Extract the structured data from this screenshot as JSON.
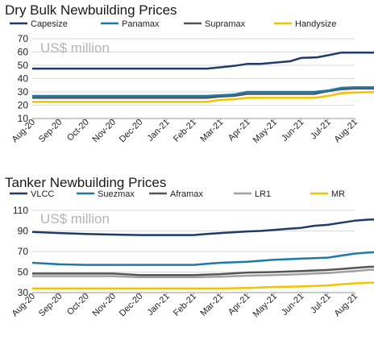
{
  "chart_data": [
    {
      "type": "line",
      "title": "Dry Bulk Newbuilding Prices",
      "unit_label": "US$ million",
      "ylim": [
        10,
        70
      ],
      "yticks": [
        10,
        20,
        30,
        40,
        50,
        60,
        70
      ],
      "grid": true,
      "legend_position": "top",
      "x_tick_labels": [
        "Aug-20",
        "Sep-20",
        "Oct-20",
        "Nov-20",
        "Dec-20",
        "Jan-21",
        "Feb-21",
        "Mar-21",
        "Apr-21",
        "May-21",
        "Jun-21",
        "Jul-21",
        "Aug-21"
      ],
      "series": [
        {
          "name": "Capesize",
          "color": "#1f3a6e",
          "points": [
            [
              0,
              47.5
            ],
            [
              6.5,
              47.5
            ],
            [
              7,
              48.5
            ],
            [
              7.5,
              49.5
            ],
            [
              8,
              51
            ],
            [
              8.5,
              51
            ],
            [
              9,
              52
            ],
            [
              9.6,
              53
            ],
            [
              10,
              55.5
            ],
            [
              10.6,
              56
            ],
            [
              11,
              57.5
            ],
            [
              11.5,
              59.5
            ],
            [
              12,
              59.5
            ],
            [
              13,
              59.5
            ]
          ]
        },
        {
          "name": "Panamax",
          "color": "#1a7aaa",
          "points": [
            [
              0,
              27
            ],
            [
              6.5,
              27
            ],
            [
              7,
              27.5
            ],
            [
              7.5,
              28
            ],
            [
              8,
              30
            ],
            [
              9,
              30
            ],
            [
              10,
              30
            ],
            [
              10.5,
              30
            ],
            [
              11,
              31
            ],
            [
              11.5,
              33
            ],
            [
              12,
              33.5
            ],
            [
              13,
              33.5
            ]
          ]
        },
        {
          "name": "Supramax",
          "color": "#555555",
          "points": [
            [
              0,
              25.5
            ],
            [
              6.5,
              25.5
            ],
            [
              7,
              26.5
            ],
            [
              7.5,
              27
            ],
            [
              8,
              28.5
            ],
            [
              10.5,
              28.5
            ],
            [
              11,
              30.5
            ],
            [
              11.5,
              32
            ],
            [
              12,
              32.5
            ],
            [
              13,
              32.5
            ]
          ]
        },
        {
          "name": "Handysize",
          "color": "#f2c400",
          "points": [
            [
              0,
              22.5
            ],
            [
              6.5,
              22.5
            ],
            [
              7,
              24
            ],
            [
              7.5,
              24.5
            ],
            [
              8,
              25.5
            ],
            [
              10.5,
              25.5
            ],
            [
              11,
              27
            ],
            [
              11.5,
              29
            ],
            [
              12,
              29.5
            ],
            [
              13,
              30
            ]
          ]
        }
      ]
    },
    {
      "type": "line",
      "title": "Tanker Newbuilding Prices",
      "unit_label": "US$ million",
      "ylim": [
        30,
        110
      ],
      "yticks": [
        30,
        50,
        70,
        90,
        110
      ],
      "grid": true,
      "legend_position": "top",
      "x_tick_labels": [
        "Aug-20",
        "Sep-20",
        "Oct-20",
        "Nov-20",
        "Dec-20",
        "Jan-21",
        "Feb-21",
        "Mar-21",
        "Apr-21",
        "May-21",
        "Jun-21",
        "Jul-21",
        "Aug-21"
      ],
      "series": [
        {
          "name": "VLCC",
          "color": "#1f3a6e",
          "points": [
            [
              0,
              89
            ],
            [
              1,
              88
            ],
            [
              2,
              87
            ],
            [
              3,
              86.5
            ],
            [
              4,
              86
            ],
            [
              5,
              86
            ],
            [
              6,
              86
            ],
            [
              6.5,
              87
            ],
            [
              7,
              88
            ],
            [
              8,
              89.5
            ],
            [
              8.5,
              90
            ],
            [
              9,
              91
            ],
            [
              9.5,
              92
            ],
            [
              10,
              93
            ],
            [
              10.5,
              95
            ],
            [
              11,
              96
            ],
            [
              11.5,
              98
            ],
            [
              12,
              100
            ],
            [
              12.5,
              101
            ],
            [
              13,
              101.5
            ]
          ]
        },
        {
          "name": "Suezmax",
          "color": "#1a7aaa",
          "points": [
            [
              0,
              59
            ],
            [
              1,
              57.5
            ],
            [
              2,
              57
            ],
            [
              3,
              57
            ],
            [
              4,
              57
            ],
            [
              5,
              57
            ],
            [
              6,
              57
            ],
            [
              6.5,
              58
            ],
            [
              7,
              59
            ],
            [
              8,
              60
            ],
            [
              8.5,
              61
            ],
            [
              9,
              62
            ],
            [
              10,
              63
            ],
            [
              11,
              64
            ],
            [
              11.5,
              66
            ],
            [
              12,
              68
            ],
            [
              12.5,
              69
            ],
            [
              13,
              69.5
            ]
          ]
        },
        {
          "name": "Aframax",
          "color": "#555555",
          "points": [
            [
              0,
              48.5
            ],
            [
              2,
              48.5
            ],
            [
              3,
              48.5
            ],
            [
              4,
              47
            ],
            [
              5,
              47
            ],
            [
              6,
              47
            ],
            [
              7,
              48
            ],
            [
              8,
              49.5
            ],
            [
              9,
              50
            ],
            [
              10,
              51
            ],
            [
              11,
              52
            ],
            [
              11.5,
              53
            ],
            [
              12,
              54
            ],
            [
              12.5,
              55
            ],
            [
              13,
              55.5
            ]
          ]
        },
        {
          "name": "LR1",
          "color": "#a0a0a0",
          "points": [
            [
              0,
              46
            ],
            [
              2,
              46
            ],
            [
              3,
              46
            ],
            [
              4,
              45
            ],
            [
              5,
              45
            ],
            [
              6,
              45
            ],
            [
              7,
              45.5
            ],
            [
              8,
              46.5
            ],
            [
              9,
              47
            ],
            [
              10,
              48
            ],
            [
              11,
              49
            ],
            [
              11.5,
              50
            ],
            [
              12,
              51
            ],
            [
              12.5,
              52
            ],
            [
              13,
              52.5
            ]
          ]
        },
        {
          "name": "MR",
          "color": "#f2c400",
          "points": [
            [
              0,
              34
            ],
            [
              2,
              34
            ],
            [
              4,
              34
            ],
            [
              5,
              34
            ],
            [
              6,
              34
            ],
            [
              7,
              34
            ],
            [
              8,
              34.5
            ],
            [
              9,
              35.5
            ],
            [
              10,
              36
            ],
            [
              11,
              37
            ],
            [
              11.5,
              38
            ],
            [
              12,
              39
            ],
            [
              12.5,
              39.5
            ],
            [
              13,
              40
            ]
          ]
        }
      ]
    }
  ]
}
